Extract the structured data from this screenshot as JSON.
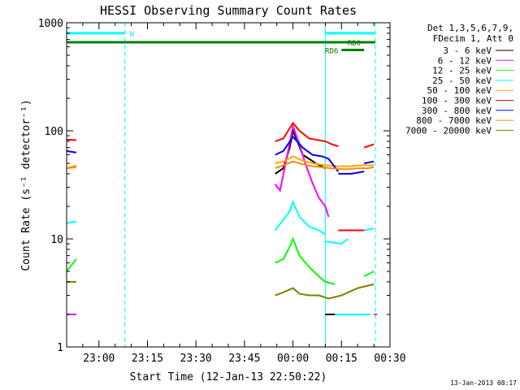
{
  "chart_data": {
    "type": "line",
    "title": "HESSI Observing Summary Count Rates",
    "xlabel": "Start Time (12-Jan-13 22:50:22)",
    "ylabel": "Count Rate (s⁻¹ detector⁻¹)",
    "yscale": "log",
    "ylim": [
      1,
      1000
    ],
    "xlim_min": [
      0,
      100
    ],
    "x_ticks": [
      {
        "m": 10,
        "label": "23:00"
      },
      {
        "m": 25,
        "label": "23:15"
      },
      {
        "m": 40,
        "label": "23:30"
      },
      {
        "m": 55,
        "label": "23:45"
      },
      {
        "m": 70,
        "label": "00:00"
      },
      {
        "m": 85,
        "label": "00:15"
      },
      {
        "m": 100,
        "label": "00:30"
      }
    ],
    "y_ticks": [
      {
        "v": 1,
        "label": "1"
      },
      {
        "v": 10,
        "label": "10"
      },
      {
        "v": 100,
        "label": "100"
      },
      {
        "v": 1000,
        "label": "1000"
      }
    ],
    "legend_position": "right",
    "legend_header": [
      "Det 1,3,5,6,7,9,",
      "FDecim 1, Att 0"
    ],
    "timestamp": "13-Jan-2013 08:17",
    "day_vlines": [
      0,
      80
    ],
    "night_vlines": [
      18,
      95.5
    ],
    "flags": [
      {
        "label": "N",
        "color": "#00ffff",
        "y": 800,
        "segments": [
          [
            0,
            18
          ],
          [
            80,
            95.5
          ]
        ]
      },
      {
        "label": "RD0",
        "color": "#008000",
        "y": 660,
        "segments": [
          [
            0,
            95.5
          ]
        ]
      },
      {
        "label": "RD6",
        "color": "#008000",
        "y": 560,
        "segments": [
          [
            85,
            92
          ]
        ]
      }
    ],
    "series": [
      {
        "name": "3 - 6 keV",
        "color": "#000000",
        "segments": [
          [
            [
              0,
              2
            ],
            [
              3,
              2
            ]
          ],
          [
            [
              64.5,
              40
            ],
            [
              67,
              45
            ],
            [
              69,
              70
            ],
            [
              70,
              100
            ],
            [
              71,
              85
            ],
            [
              73,
              60
            ],
            [
              75,
              55
            ],
            [
              77,
              50
            ],
            [
              80,
              45
            ]
          ],
          [
            [
              80,
              2
            ],
            [
              83,
              2
            ]
          ]
        ]
      },
      {
        "name": "6 - 12 keV",
        "color": "#ff00ff",
        "segments": [
          [
            [
              0,
              2
            ],
            [
              3,
              2
            ]
          ],
          [
            [
              64.5,
              32
            ],
            [
              66,
              28
            ],
            [
              68,
              55
            ],
            [
              70,
              110
            ],
            [
              72,
              75
            ],
            [
              74,
              48
            ],
            [
              76,
              33
            ],
            [
              78,
              24
            ],
            [
              80,
              20
            ],
            [
              81,
              16
            ]
          ],
          [
            [
              95,
              2
            ],
            [
              96,
              2
            ]
          ]
        ]
      },
      {
        "name": "12 - 25 keV",
        "color": "#00ff00",
        "segments": [
          [
            [
              0,
              5
            ],
            [
              3,
              6.5
            ]
          ],
          [
            [
              64.5,
              6
            ],
            [
              67,
              6.5
            ],
            [
              69,
              8.5
            ],
            [
              70,
              10
            ],
            [
              72,
              7
            ],
            [
              75,
              5.5
            ],
            [
              78,
              4.5
            ],
            [
              80,
              4
            ],
            [
              83,
              3.8
            ]
          ],
          [
            [
              92,
              4.5
            ],
            [
              95,
              5
            ]
          ]
        ]
      },
      {
        "name": "25 - 50 keV",
        "color": "#00ffff",
        "segments": [
          [
            [
              0,
              14
            ],
            [
              3,
              14.5
            ]
          ],
          [
            [
              64.5,
              12
            ],
            [
              67,
              15
            ],
            [
              69,
              18
            ],
            [
              70,
              22
            ],
            [
              72,
              16
            ],
            [
              75,
              13
            ],
            [
              78,
              12
            ],
            [
              80,
              11
            ]
          ],
          [
            [
              80,
              9.5
            ],
            [
              85,
              9
            ],
            [
              87,
              10
            ]
          ],
          [
            [
              83,
              2
            ],
            [
              94,
              2
            ]
          ],
          [
            [
              92,
              12
            ],
            [
              95,
              12.5
            ]
          ]
        ]
      },
      {
        "name": "50 - 100 keV",
        "color": "#ffa500",
        "segments": [
          [
            [
              0,
              45
            ],
            [
              3,
              48
            ]
          ],
          [
            [
              64.5,
              50
            ],
            [
              67,
              52
            ],
            [
              70,
              58
            ],
            [
              73,
              53
            ],
            [
              76,
              50
            ],
            [
              80,
              48
            ],
            [
              84,
              47
            ],
            [
              88,
              47
            ],
            [
              92,
              48
            ],
            [
              95,
              48
            ]
          ]
        ]
      },
      {
        "name": "100 - 300 keV",
        "color": "#ff0000",
        "segments": [
          [
            [
              0,
              83
            ],
            [
              3,
              82
            ]
          ],
          [
            [
              64.5,
              80
            ],
            [
              67,
              85
            ],
            [
              70,
              118
            ],
            [
              72,
              100
            ],
            [
              75,
              85
            ],
            [
              80,
              80
            ],
            [
              82,
              75
            ],
            [
              84,
              72
            ]
          ],
          [
            [
              84,
              12
            ],
            [
              88,
              12
            ],
            [
              92,
              12
            ]
          ],
          [
            [
              92,
              70
            ],
            [
              95,
              75
            ]
          ]
        ]
      },
      {
        "name": "300 - 800 keV",
        "color": "#0000ff",
        "segments": [
          [
            [
              0,
              65
            ],
            [
              3,
              63
            ]
          ],
          [
            [
              64.5,
              60
            ],
            [
              67,
              65
            ],
            [
              70,
              88
            ],
            [
              73,
              70
            ],
            [
              76,
              60
            ],
            [
              79,
              58
            ],
            [
              81,
              55
            ],
            [
              84,
              42
            ]
          ],
          [
            [
              84,
              40
            ],
            [
              88,
              40
            ],
            [
              92,
              42
            ]
          ],
          [
            [
              92,
              50
            ],
            [
              95,
              52
            ]
          ]
        ]
      },
      {
        "name": "800 - 7000 keV",
        "color": "#ff8c00",
        "segments": [
          [
            [
              0,
              45
            ],
            [
              3,
              46
            ]
          ],
          [
            [
              64.5,
              45
            ],
            [
              67,
              48
            ],
            [
              70,
              52
            ],
            [
              73,
              49
            ],
            [
              76,
              47
            ],
            [
              79,
              46
            ],
            [
              82,
              45
            ],
            [
              86,
              44
            ],
            [
              90,
              45
            ],
            [
              93,
              45
            ],
            [
              95,
              46
            ]
          ]
        ]
      },
      {
        "name": "7000 - 20000 keV",
        "color": "#808000",
        "segments": [
          [
            [
              0,
              4
            ],
            [
              3,
              4
            ]
          ],
          [
            [
              64.5,
              3
            ],
            [
              67,
              3.2
            ],
            [
              70,
              3.5
            ],
            [
              72,
              3.1
            ],
            [
              75,
              3
            ],
            [
              78,
              3
            ],
            [
              81,
              2.8
            ],
            [
              85,
              3
            ],
            [
              90,
              3.5
            ],
            [
              95,
              3.8
            ]
          ]
        ]
      }
    ]
  }
}
